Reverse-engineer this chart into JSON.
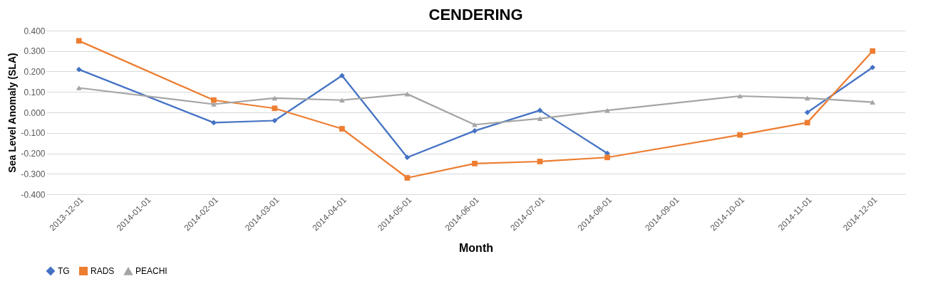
{
  "chart_data": {
    "type": "line",
    "title": "CENDERING",
    "xlabel": "Month",
    "ylabel": "Sea Level Anomaly (SLA)",
    "xlim": [
      "2013-11-16",
      "2014-12-16"
    ],
    "xticks": [
      "2013-12-01",
      "2014-01-01",
      "2014-02-01",
      "2014-03-01",
      "2014-04-01",
      "2014-05-01",
      "2014-06-01",
      "2014-07-01",
      "2014-08-01",
      "2014-09-01",
      "2014-10-01",
      "2014-11-01",
      "2014-12-01"
    ],
    "ylim": [
      -0.4,
      0.4
    ],
    "yticks": [
      {
        "value": -0.4,
        "label": "-0.400"
      },
      {
        "value": -0.3,
        "label": "-0.300"
      },
      {
        "value": -0.2,
        "label": "-0.200"
      },
      {
        "value": -0.1,
        "label": "-0.100"
      },
      {
        "value": 0,
        "label": "0.000"
      },
      {
        "value": 0.1,
        "label": "0.100"
      },
      {
        "value": 0.2,
        "label": "0.200"
      },
      {
        "value": 0.3,
        "label": "0.300"
      },
      {
        "value": 0.4,
        "label": "0.400"
      }
    ],
    "grid": "y",
    "legend": "bottom",
    "series": [
      {
        "name": "TG",
        "color": "#4472c4",
        "marker": "diamond",
        "x": [
          "2013-12-01",
          "2014-02-01",
          "2014-03-01",
          "2014-04-01",
          "2014-05-01",
          "2014-06-01",
          "2014-07-01",
          "2014-08-01",
          "2014-09-01",
          "2014-11-01",
          "2014-12-01"
        ],
        "values": [
          0.21,
          -0.05,
          -0.04,
          0.18,
          -0.22,
          -0.09,
          0.01,
          -0.2,
          null,
          0.0,
          0.22
        ]
      },
      {
        "name": "RADS",
        "color": "#ed7d31",
        "marker": "square",
        "x": [
          "2013-12-01",
          "2014-02-01",
          "2014-03-01",
          "2014-04-01",
          "2014-05-01",
          "2014-06-01",
          "2014-07-01",
          "2014-08-01",
          "2014-10-01",
          "2014-11-01",
          "2014-12-01"
        ],
        "values": [
          0.35,
          0.06,
          0.02,
          -0.08,
          -0.32,
          -0.25,
          -0.24,
          -0.22,
          -0.11,
          -0.05,
          0.3
        ]
      },
      {
        "name": "PEACHI",
        "color": "#a5a5a5",
        "marker": "triangle",
        "x": [
          "2013-12-01",
          "2014-02-01",
          "2014-03-01",
          "2014-04-01",
          "2014-05-01",
          "2014-06-01",
          "2014-07-01",
          "2014-08-01",
          "2014-10-01",
          "2014-11-01",
          "2014-12-01"
        ],
        "values": [
          0.12,
          0.04,
          0.07,
          0.06,
          0.09,
          -0.06,
          -0.03,
          0.01,
          0.08,
          0.07,
          0.05
        ]
      }
    ]
  }
}
